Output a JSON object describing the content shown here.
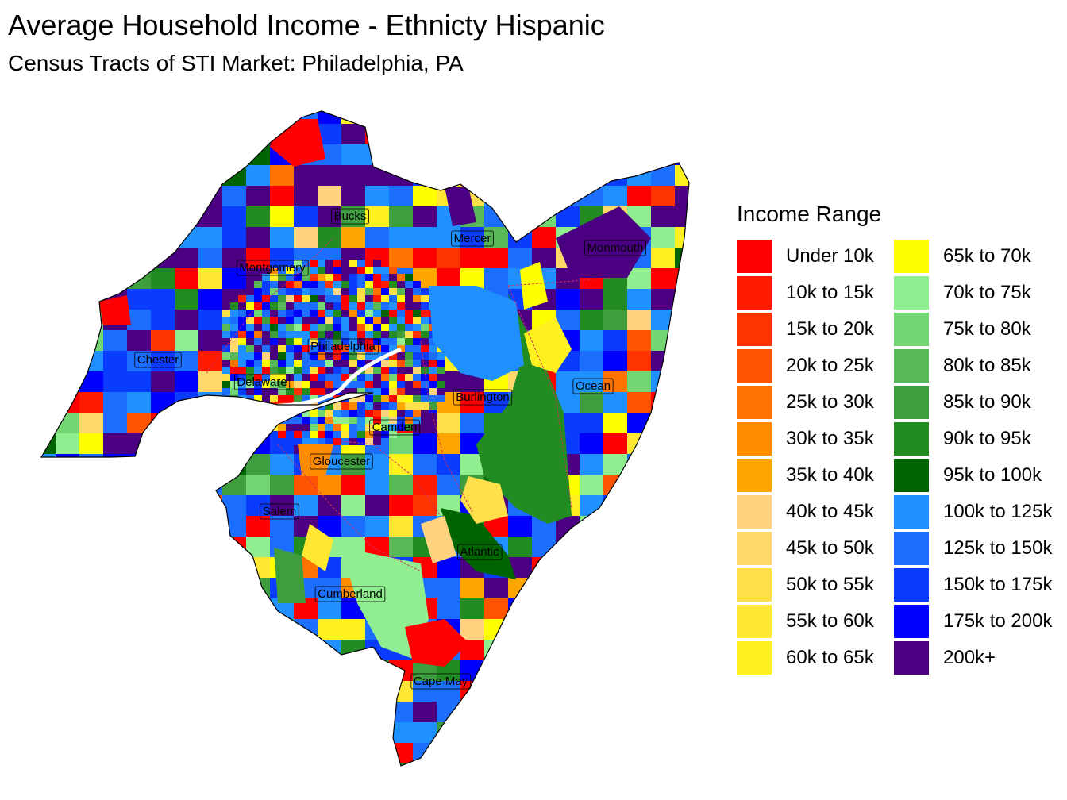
{
  "title": "Average Household Income - Ethnicty Hispanic",
  "subtitle": "Census Tracts of STI Market: Philadelphia, PA",
  "legend": {
    "title": "Income Range",
    "items": [
      {
        "label": "Under 10k",
        "color": "#FF0000"
      },
      {
        "label": "10k to 15k",
        "color": "#FF1A00"
      },
      {
        "label": "15k to 20k",
        "color": "#FF3300"
      },
      {
        "label": "20k to 25k",
        "color": "#FF5500"
      },
      {
        "label": "25k to 30k",
        "color": "#FF7300"
      },
      {
        "label": "30k to 35k",
        "color": "#FF8C00"
      },
      {
        "label": "35k to 40k",
        "color": "#FFA500"
      },
      {
        "label": "40k to 45k",
        "color": "#FFD27F"
      },
      {
        "label": "45k to 50k",
        "color": "#FFDA6B"
      },
      {
        "label": "50k to 55k",
        "color": "#FFE04A"
      },
      {
        "label": "55k to 60k",
        "color": "#FFE733"
      },
      {
        "label": "60k to 65k",
        "color": "#FFF01F"
      },
      {
        "label": "65k to 70k",
        "color": "#FFFF00"
      },
      {
        "label": "70k to 75k",
        "color": "#90EE90"
      },
      {
        "label": "75k to 80k",
        "color": "#72D672"
      },
      {
        "label": "80k to 85k",
        "color": "#58B858"
      },
      {
        "label": "85k to 90k",
        "color": "#3E9E3E"
      },
      {
        "label": "90k to 95k",
        "color": "#228B22"
      },
      {
        "label": "95k to 100k",
        "color": "#006400"
      },
      {
        "label": "100k to 125k",
        "color": "#1E90FF"
      },
      {
        "label": "125k to 150k",
        "color": "#1C6EFF"
      },
      {
        "label": "150k to 175k",
        "color": "#0A3CFF"
      },
      {
        "label": "175k to 200k",
        "color": "#0000FF"
      },
      {
        "label": "200k+",
        "color": "#4B0082"
      }
    ]
  },
  "counties": [
    {
      "name": "Bucks"
    },
    {
      "name": "Mercer"
    },
    {
      "name": "Monmouth"
    },
    {
      "name": "Montgomery"
    },
    {
      "name": "Philadelphia"
    },
    {
      "name": "Chester"
    },
    {
      "name": "Delaware"
    },
    {
      "name": "Ocean"
    },
    {
      "name": "Burlington"
    },
    {
      "name": "Camden"
    },
    {
      "name": "Gloucester"
    },
    {
      "name": "Salem"
    },
    {
      "name": "Atlantic"
    },
    {
      "name": "Cumberland"
    },
    {
      "name": "Cape May"
    }
  ]
}
